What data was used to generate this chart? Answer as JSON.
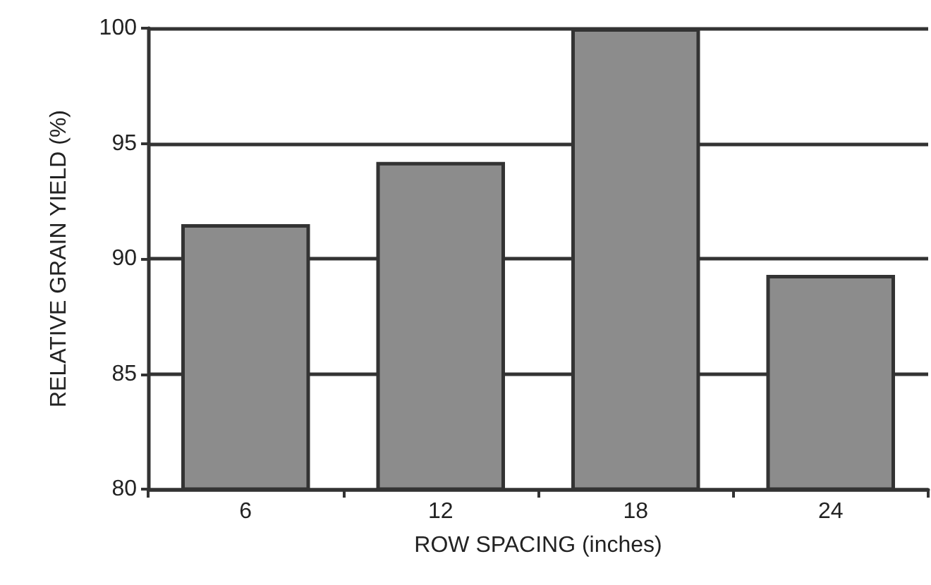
{
  "chart_data": {
    "type": "bar",
    "xlabel": "ROW SPACING (inches)",
    "ylabel": "RELATIVE GRAIN YIELD (%)",
    "categories": [
      "6",
      "12",
      "18",
      "24"
    ],
    "values": [
      91.5,
      94.2,
      100,
      89.3
    ],
    "color": "#8c8c8c",
    "ylim": [
      80,
      100
    ],
    "yticks": [
      80,
      85,
      90,
      95,
      100
    ],
    "grid": "y"
  }
}
